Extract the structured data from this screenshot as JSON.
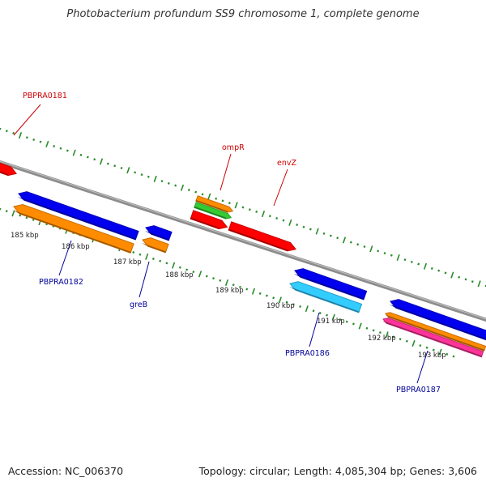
{
  "title": "Photobacterium profundum SS9 chromosome 1, complete genome",
  "footer": {
    "accession": "Accession: NC_006370",
    "summary": "Topology: circular; Length: 4,085,304 bp; Genes: 3,606"
  },
  "colors": {
    "backbone": "#8c8c8c",
    "tick": "#2a8c2a",
    "ruler_label": "#222222",
    "label_forward": "#cc0000",
    "label_reverse": "#000099",
    "callout_forward": "#cc0000",
    "callout_reverse": "#000099"
  },
  "ruler_labels": [
    "185 kbp",
    "186 kbp",
    "187 kbp",
    "188 kbp",
    "189 kbp",
    "190 kbp",
    "191 kbp",
    "192 kbp",
    "193 kbp"
  ],
  "gene_labels": [
    {
      "name": "PBPRA0181",
      "strand": "forward"
    },
    {
      "name": "ompR",
      "strand": "forward"
    },
    {
      "name": "envZ",
      "strand": "forward"
    },
    {
      "name": "PBPRA0182",
      "strand": "reverse"
    },
    {
      "name": "greB",
      "strand": "reverse"
    },
    {
      "name": "PBPRA0186",
      "strand": "reverse"
    },
    {
      "name": "PBPRA0187",
      "strand": "reverse"
    }
  ],
  "features": [
    {
      "id": "gene-red-left-edge",
      "strand": "forward",
      "color": "#ff0000"
    },
    {
      "id": "gene-ompR-orange",
      "strand": "forward",
      "color": "#ff8c00"
    },
    {
      "id": "gene-ompR-green",
      "strand": "forward",
      "color": "#33cc33"
    },
    {
      "id": "gene-ompR-red",
      "strand": "forward",
      "color": "#ff0000"
    },
    {
      "id": "gene-envZ-red",
      "strand": "forward",
      "color": "#ff0000"
    },
    {
      "id": "gene-PBPRA0182-blue",
      "strand": "reverse",
      "color": "#0000ee"
    },
    {
      "id": "gene-PBPRA0182-orange",
      "strand": "reverse",
      "color": "#ff8c00"
    },
    {
      "id": "gene-greB-blue",
      "strand": "reverse",
      "color": "#0000ee"
    },
    {
      "id": "gene-greB-orange",
      "strand": "reverse",
      "color": "#ff8c00"
    },
    {
      "id": "gene-PBPRA0186-blue",
      "strand": "reverse",
      "color": "#0000ee"
    },
    {
      "id": "gene-PBPRA0186-cyan",
      "strand": "reverse",
      "color": "#33ccff"
    },
    {
      "id": "gene-PBPRA0187-blue",
      "strand": "reverse",
      "color": "#0000ee"
    },
    {
      "id": "gene-PBPRA0187-orange",
      "strand": "reverse",
      "color": "#ff8c00"
    },
    {
      "id": "gene-PBPRA0187-pink",
      "strand": "reverse",
      "color": "#ff3399"
    }
  ]
}
